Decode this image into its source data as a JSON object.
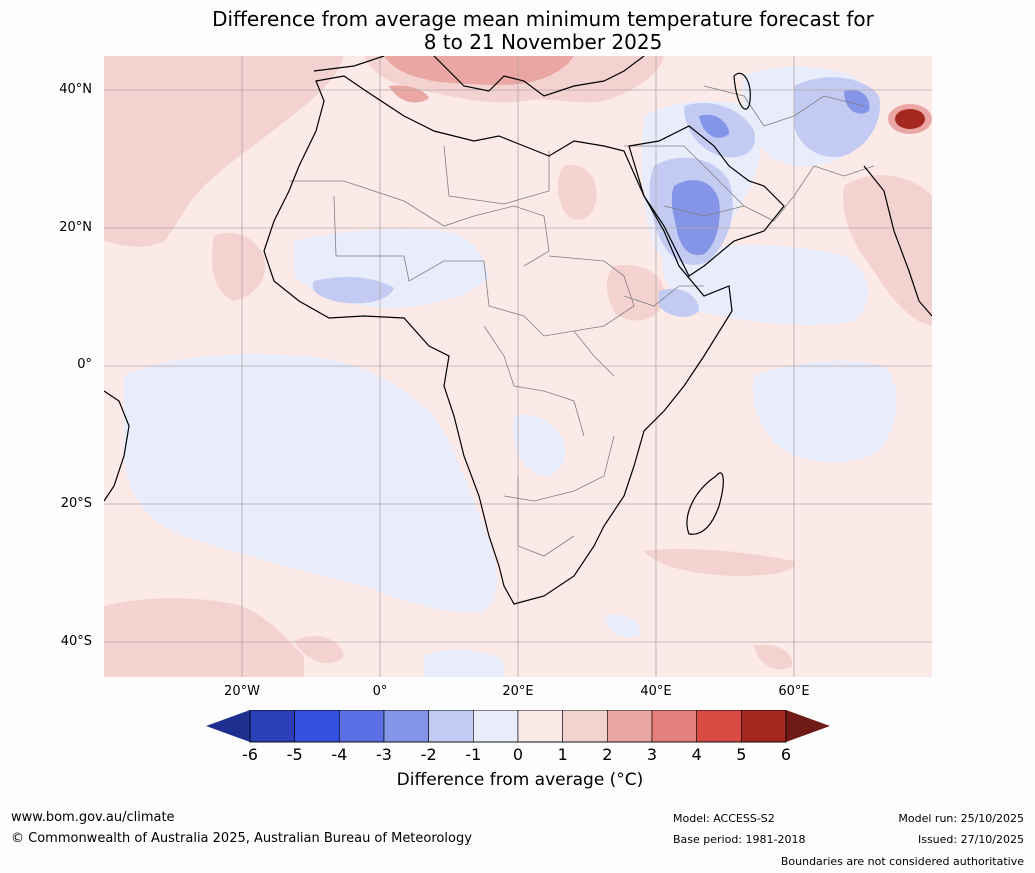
{
  "title": {
    "line1": "Difference from average mean minimum temperature forecast for",
    "line2": "8 to 21 November 2025"
  },
  "map": {
    "region": "Africa and surrounding oceans",
    "lat_labels": [
      "40°N",
      "20°N",
      "0°",
      "20°S",
      "40°S"
    ],
    "lon_labels": [
      "20°W",
      "0°",
      "20°E",
      "40°E",
      "60°E"
    ],
    "colors": {
      "ocean_base": "#fbeae8",
      "warm_light": "#f3d2cf",
      "warm_mid": "#eaa6a3",
      "cool_faint": "#e8ecfb",
      "cool_light": "#c3cbf3",
      "cool_mid": "#8494e6",
      "hot_core": "#a52820",
      "coast": "#000000",
      "borders": "#808080",
      "grid": "#b0a8a8"
    }
  },
  "colorbar": {
    "title": "Difference from average (°C)",
    "tick_labels": [
      "-6",
      "-5",
      "-4",
      "-3",
      "-2",
      "-1",
      "0",
      "1",
      "2",
      "3",
      "4",
      "5",
      "6"
    ],
    "colors": [
      "#1f2f8f",
      "#2a3fb8",
      "#3350e0",
      "#5a70e4",
      "#8494e6",
      "#c3cbf3",
      "#e8ecfb",
      "#fbeae8",
      "#f3d2cf",
      "#eaa6a3",
      "#e4807b",
      "#d94a42",
      "#a52820",
      "#6e1a16"
    ]
  },
  "footer": {
    "website": "www.bom.gov.au/climate",
    "copyright": "© Commonwealth of Australia 2025, Australian Bureau of Meteorology",
    "model": "Model: ACCESS-S2",
    "base_period": "Base period: 1981-2018",
    "model_run": "Model run: 25/10/2025",
    "issued": "Issued: 27/10/2025",
    "disclaimer": "Boundaries are not considered authoritative"
  }
}
